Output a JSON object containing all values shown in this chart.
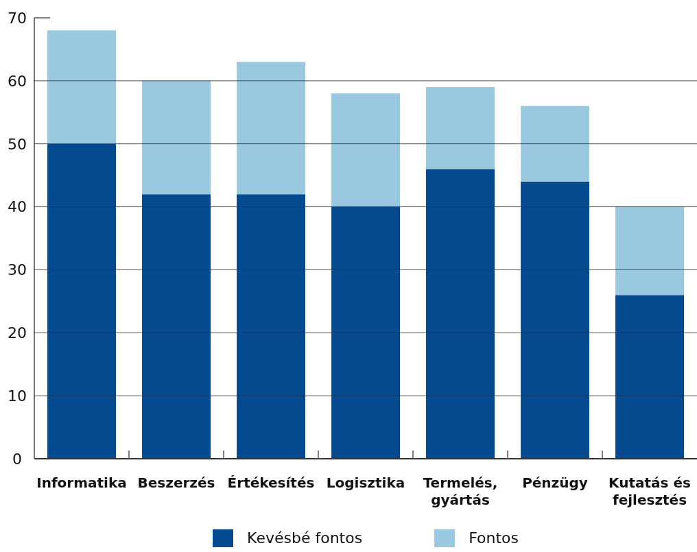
{
  "chart_data": {
    "type": "bar",
    "categories": [
      "Informatika",
      "Beszerzés",
      "Értékesítés",
      "Logisztika",
      "Termelés, gyártás",
      "Pénzügy",
      "Kutatás és fejlesztés"
    ],
    "series": [
      {
        "name": "Kevésbé fontos",
        "color": "#05498f",
        "values": [
          50,
          42,
          42,
          40,
          46,
          44,
          26
        ]
      },
      {
        "name": "Fontos",
        "color": "#9bc8e1",
        "values": [
          18,
          18,
          21,
          18,
          13,
          12,
          14
        ]
      }
    ],
    "stacked": true,
    "ylim": [
      0,
      70
    ],
    "yticks": [
      0,
      10,
      20,
      30,
      40,
      50,
      60,
      70
    ],
    "grid": "y",
    "legend": "bottom"
  }
}
